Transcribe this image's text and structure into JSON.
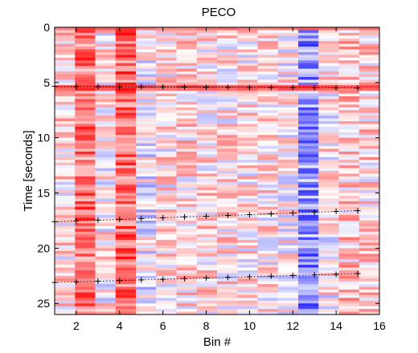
{
  "chart_data": {
    "type": "heatmap",
    "title": "PECO",
    "xlabel": "Bin #",
    "ylabel": "Time [seconds]",
    "xlim": [
      1,
      16
    ],
    "ylim": [
      26,
      0
    ],
    "y_reversed": true,
    "xticks": [
      2,
      4,
      6,
      8,
      10,
      12,
      14,
      16
    ],
    "yticks": [
      0,
      5,
      10,
      15,
      20,
      25
    ],
    "colormap": "blue-white-red diverging",
    "colors": {
      "negative": "#0000ff",
      "neutral": "#ffffff",
      "positive": "#ff0000",
      "marker": "#000000"
    },
    "bins": [
      1,
      2,
      3,
      4,
      5,
      6,
      7,
      8,
      9,
      10,
      11,
      12,
      13,
      14,
      15,
      16
    ],
    "bin_bias": [
      0.12,
      0.55,
      0.05,
      0.6,
      -0.05,
      0.08,
      0.15,
      0.12,
      0.1,
      0.1,
      0.08,
      0.05,
      -0.45,
      0.05,
      0.2,
      0.15
    ],
    "strong_rows": [
      {
        "t": 5.3,
        "value": 0.75
      },
      {
        "t": 5.6,
        "value": 0.6
      },
      {
        "t": 0.1,
        "value": 0.55
      }
    ],
    "marker_lines": [
      {
        "name": "upper",
        "t_left": 5.35,
        "t_right": 5.5
      },
      {
        "name": "middle",
        "t_left": 17.6,
        "t_right": 16.6
      },
      {
        "name": "lower",
        "t_left": 23.1,
        "t_right": 22.3
      }
    ],
    "marker_bins": [
      1,
      2,
      3,
      4,
      5,
      6,
      7,
      8,
      9,
      10,
      11,
      12,
      13,
      14,
      15
    ]
  }
}
